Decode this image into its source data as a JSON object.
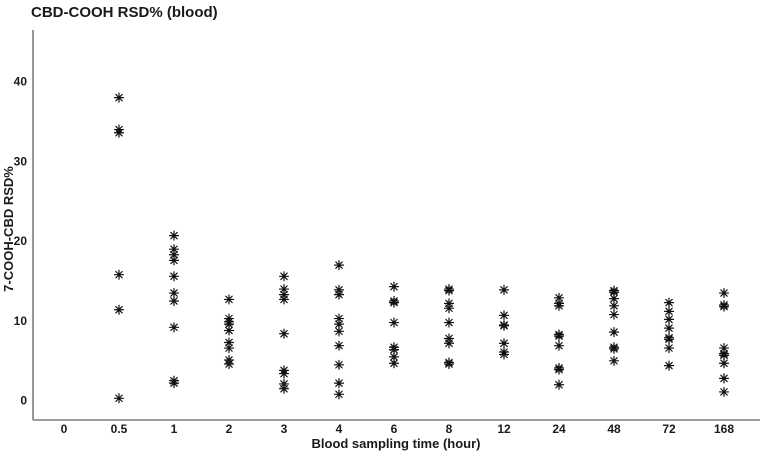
{
  "chart_data": {
    "type": "scatter",
    "title": "CBD-COOH RSD% (blood)",
    "xlabel": "Blood sampling time (hour)",
    "ylabel": "7-COOH-CBD RSD%",
    "categories": [
      "0",
      "0.5",
      "1",
      "2",
      "3",
      "4",
      "6",
      "8",
      "12",
      "24",
      "48",
      "72",
      "168"
    ],
    "yticks": [
      0,
      10,
      20,
      30,
      40
    ],
    "ylim": [
      -2.5,
      46.5
    ],
    "grid": false,
    "legend": "none",
    "marker": "8-ray-asterisk",
    "marker_color": "#111111",
    "axis_color": "#7f7f7f",
    "points_by_category": {
      "0": [],
      "0.5": [
        38.0,
        34.0,
        33.6,
        15.8,
        11.4,
        0.3
      ],
      "1": [
        20.7,
        19.0,
        18.3,
        17.6,
        15.6,
        13.5,
        12.5,
        9.2,
        2.5,
        2.2
      ],
      "2": [
        12.7,
        10.3,
        9.9,
        9.6,
        8.8,
        7.3,
        6.6,
        5.1,
        4.6
      ],
      "3": [
        15.6,
        14.0,
        13.3,
        12.7,
        8.4,
        3.8,
        3.4,
        2.1,
        1.5
      ],
      "4": [
        17.0,
        13.9,
        13.3,
        10.3,
        9.6,
        8.7,
        6.9,
        4.5,
        2.2,
        0.8
      ],
      "6": [
        14.3,
        12.5,
        12.3,
        9.8,
        6.7,
        6.4,
        5.5,
        4.7
      ],
      "8": [
        14.0,
        13.8,
        12.2,
        11.6,
        9.8,
        7.8,
        7.2,
        4.8,
        4.6
      ],
      "12": [
        13.9,
        10.7,
        9.5,
        9.4,
        7.2,
        6.1,
        5.8
      ],
      "24": [
        12.9,
        12.2,
        11.9,
        8.3,
        8.1,
        6.9,
        4.1,
        3.9,
        2.0
      ],
      "48": [
        13.8,
        13.6,
        12.8,
        11.9,
        10.8,
        8.6,
        6.7,
        6.5,
        5.0
      ],
      "72": [
        12.3,
        11.2,
        10.2,
        9.1,
        7.9,
        7.7,
        6.6,
        4.4
      ],
      "168": [
        13.5,
        12.0,
        11.8,
        6.6,
        5.9,
        5.7,
        4.7,
        2.8,
        1.1
      ]
    }
  }
}
